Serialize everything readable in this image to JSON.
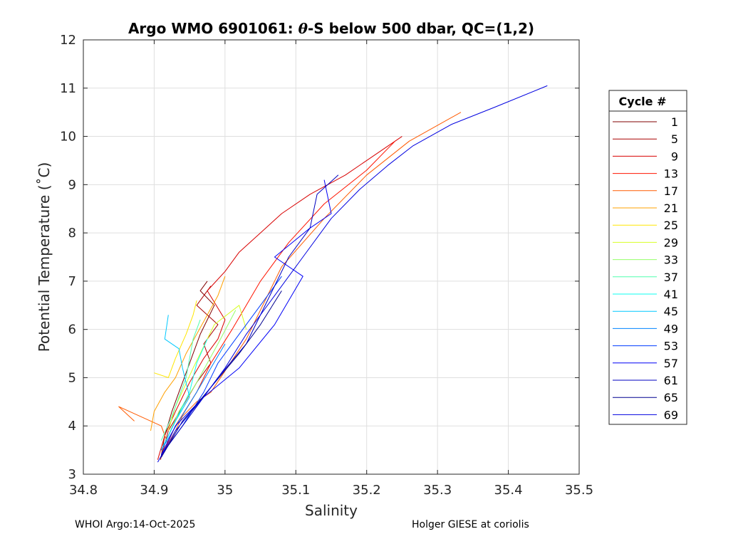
{
  "chart_data": {
    "type": "line",
    "title_parts": [
      "Argo WMO 6901061: ",
      "θ",
      "-S below 500 dbar,  QC=(1,2)"
    ],
    "xlabel": "Salinity",
    "ylabel": "Potential Temperature (˚C)",
    "xlim": [
      34.8,
      35.5
    ],
    "ylim": [
      3,
      12
    ],
    "x_ticks": [
      34.8,
      34.9,
      35.0,
      35.1,
      35.2,
      35.3,
      35.4,
      35.5
    ],
    "x_tick_labels": [
      "34.8",
      "34.9",
      "35",
      "35.1",
      "35.2",
      "35.3",
      "35.4",
      "35.5"
    ],
    "y_ticks": [
      3,
      4,
      5,
      6,
      7,
      8,
      9,
      10,
      11,
      12
    ],
    "y_tick_labels": [
      "3",
      "4",
      "5",
      "6",
      "7",
      "8",
      "9",
      "10",
      "11",
      "12"
    ],
    "grid": true,
    "legend": {
      "title": "Cycle #",
      "placement": "right-outside",
      "entries": [
        {
          "label": "1",
          "color": "#800000"
        },
        {
          "label": "5",
          "color": "#a80000"
        },
        {
          "label": "9",
          "color": "#d80000"
        },
        {
          "label": "13",
          "color": "#ff1400"
        },
        {
          "label": "17",
          "color": "#ff5a00"
        },
        {
          "label": "21",
          "color": "#ffa000"
        },
        {
          "label": "25",
          "color": "#ffe600"
        },
        {
          "label": "29",
          "color": "#d8ff26"
        },
        {
          "label": "33",
          "color": "#94ff6a"
        },
        {
          "label": "37",
          "color": "#50ffae"
        },
        {
          "label": "41",
          "color": "#0cfff2"
        },
        {
          "label": "45",
          "color": "#00c8ff"
        },
        {
          "label": "49",
          "color": "#0082ff"
        },
        {
          "label": "53",
          "color": "#003cff"
        },
        {
          "label": "57",
          "color": "#0000f6"
        },
        {
          "label": "61",
          "color": "#0000c0"
        },
        {
          "label": "65",
          "color": "#000090"
        },
        {
          "label": "69",
          "color": "#0000e0"
        }
      ]
    },
    "series": [
      {
        "name": "1",
        "color": "#800000",
        "x": [
          34.909,
          34.915,
          34.925,
          34.935,
          34.945,
          34.955,
          34.965,
          34.975,
          34.985,
          34.965,
          34.975
        ],
        "y": [
          3.3,
          3.8,
          4.3,
          4.7,
          5.1,
          5.5,
          5.9,
          6.2,
          6.5,
          6.8,
          7.0
        ]
      },
      {
        "name": "5",
        "color": "#a80000",
        "x": [
          34.91,
          34.92,
          34.94,
          34.96,
          34.98,
          34.97,
          34.99,
          34.96,
          34.98
        ],
        "y": [
          3.35,
          3.9,
          4.4,
          4.9,
          5.3,
          5.7,
          6.1,
          6.5,
          6.9
        ]
      },
      {
        "name": "9",
        "color": "#d80000",
        "x": [
          34.905,
          34.915,
          34.93,
          34.95,
          34.97,
          34.99,
          35.0,
          34.975,
          35.0,
          35.02,
          35.05,
          35.08,
          35.12,
          35.17,
          35.2,
          35.25
        ],
        "y": [
          3.3,
          3.8,
          4.3,
          4.9,
          5.4,
          5.8,
          6.2,
          6.8,
          7.2,
          7.6,
          8.0,
          8.4,
          8.8,
          9.2,
          9.5,
          10.0
        ]
      },
      {
        "name": "13",
        "color": "#ff1400",
        "x": [
          34.91,
          34.93,
          34.96,
          34.98,
          35.01,
          35.05,
          35.09,
          35.14,
          35.2,
          35.24
        ],
        "y": [
          3.35,
          4.0,
          4.7,
          5.3,
          6.0,
          7.0,
          7.8,
          8.6,
          9.3,
          9.9
        ]
      },
      {
        "name": "17",
        "color": "#ff5a00",
        "x": [
          34.872,
          34.85,
          34.91,
          34.92,
          34.94,
          34.96,
          34.98,
          35.03,
          35.08,
          35.14,
          35.2,
          35.26,
          35.333
        ],
        "y": [
          4.1,
          4.4,
          4.0,
          3.6,
          4.2,
          4.5,
          4.7,
          5.8,
          7.3,
          8.3,
          9.2,
          9.9,
          10.5
        ]
      },
      {
        "name": "21",
        "color": "#ffa000",
        "x": [
          34.895,
          34.9,
          34.915,
          34.93,
          34.945,
          34.96,
          34.99,
          35.0
        ],
        "y": [
          3.9,
          4.3,
          4.7,
          5.0,
          5.5,
          5.9,
          6.7,
          7.1
        ]
      },
      {
        "name": "25",
        "color": "#ffe600",
        "x": [
          34.9,
          34.92,
          34.93,
          34.945,
          34.955,
          34.96
        ],
        "y": [
          5.1,
          5.0,
          5.4,
          5.9,
          6.3,
          6.6
        ]
      },
      {
        "name": "29",
        "color": "#d8ff26",
        "x": [
          34.92,
          34.93,
          34.955,
          34.985,
          35.02,
          35.03
        ],
        "y": [
          3.9,
          4.4,
          5.2,
          6.1,
          6.5,
          6.0
        ]
      },
      {
        "name": "33",
        "color": "#94ff6a",
        "x": [
          34.92,
          34.935,
          34.96,
          34.99,
          35.015
        ],
        "y": [
          3.8,
          4.3,
          4.9,
          5.7,
          6.4
        ]
      },
      {
        "name": "37",
        "color": "#50ffae",
        "x": [
          34.91,
          34.925,
          34.945,
          34.955,
          34.965
        ],
        "y": [
          3.7,
          4.2,
          5.0,
          5.8,
          6.2
        ]
      },
      {
        "name": "41",
        "color": "#0cfff2",
        "x": [
          34.91,
          34.93,
          34.95,
          34.96,
          34.975
        ],
        "y": [
          3.5,
          4.1,
          4.7,
          5.3,
          5.8
        ]
      },
      {
        "name": "45",
        "color": "#00c8ff",
        "x": [
          34.91,
          34.93,
          34.95,
          34.94,
          34.935,
          34.915,
          34.92
        ],
        "y": [
          3.5,
          4.1,
          4.6,
          5.2,
          5.6,
          5.8,
          6.3
        ]
      },
      {
        "name": "49",
        "color": "#0082ff",
        "x": [
          34.91,
          34.935,
          34.96,
          34.98,
          35.0
        ],
        "y": [
          3.5,
          4.1,
          4.7,
          5.2,
          5.7
        ]
      },
      {
        "name": "53",
        "color": "#003cff",
        "x": [
          34.91,
          34.94,
          34.97,
          34.99,
          35.02,
          35.05,
          35.08
        ],
        "y": [
          3.4,
          4.0,
          4.7,
          5.3,
          5.9,
          6.5,
          7.1
        ]
      },
      {
        "name": "57",
        "color": "#0000f6",
        "x": [
          34.91,
          34.93,
          34.97,
          35.02,
          35.07,
          35.11,
          35.07,
          35.12,
          35.15,
          35.14
        ],
        "y": [
          3.4,
          4.0,
          4.6,
          5.2,
          6.1,
          7.1,
          7.5,
          8.1,
          8.4,
          9.1
        ]
      },
      {
        "name": "61",
        "color": "#0000c0",
        "x": [
          34.91,
          34.95,
          34.99,
          35.03,
          35.06,
          35.09,
          35.12,
          35.13,
          35.16
        ],
        "y": [
          3.4,
          4.2,
          5.0,
          5.7,
          6.6,
          7.5,
          8.1,
          8.8,
          9.2
        ]
      },
      {
        "name": "65",
        "color": "#000090",
        "x": [
          34.91,
          34.94,
          34.98,
          35.02,
          35.05,
          35.08
        ],
        "y": [
          3.35,
          4.1,
          4.8,
          5.5,
          6.1,
          6.8
        ]
      },
      {
        "name": "69",
        "color": "#0000e0",
        "x": [
          34.905,
          34.93,
          34.97,
          35.0,
          35.03,
          35.07,
          35.11,
          35.15,
          35.19,
          35.23,
          35.265,
          35.32,
          35.38,
          35.455
        ],
        "y": [
          3.25,
          3.9,
          4.6,
          5.2,
          5.9,
          6.7,
          7.5,
          8.3,
          8.9,
          9.4,
          9.8,
          10.25,
          10.6,
          11.05
        ]
      }
    ]
  },
  "footer": {
    "left": "WHOI Argo:14-Oct-2025",
    "right": "Holger GIESE at coriolis"
  }
}
